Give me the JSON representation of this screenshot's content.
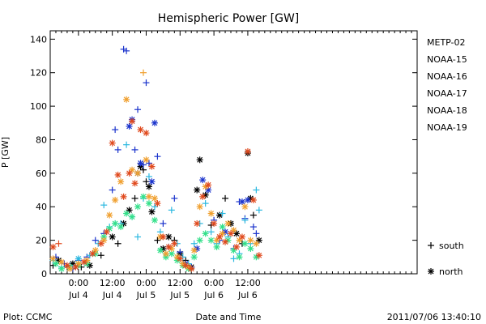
{
  "footer": {
    "plot_credit": "Plot: CCMC",
    "timestamp": "2011/07/06 13:40:10"
  },
  "colors": {
    "METP-02": "#000000",
    "NOAA-15": "#1a33cc",
    "NOAA-16": "#2ab8e0",
    "NOAA-17": "#33e08a",
    "NOAA-18": "#f0a030",
    "NOAA-19": "#e04a1e"
  },
  "chart_data": {
    "type": "scatter",
    "title": "Hemispheric Power [GW]",
    "xlabel": "Date and Time",
    "ylabel": "P [GW]",
    "xlim": [
      -10,
      120
    ],
    "ylim": [
      0,
      145
    ],
    "yticks": [
      0,
      20,
      40,
      60,
      80,
      100,
      120,
      140
    ],
    "xticks": [
      {
        "h": 0,
        "time": "0:00",
        "date": "Jul 4"
      },
      {
        "h": 12,
        "time": "12:00",
        "date": "Jul 4"
      },
      {
        "h": 24,
        "time": "0:00",
        "date": "Jul 5"
      },
      {
        "h": 36,
        "time": "12:00",
        "date": "Jul 5"
      },
      {
        "h": 48,
        "time": "0:00",
        "date": "Jul 6"
      },
      {
        "h": 60,
        "time": "12:00",
        "date": "Jul 6"
      }
    ],
    "marker_legend": [
      {
        "marker": "+",
        "label": "south"
      },
      {
        "marker": "*",
        "label": "north"
      }
    ],
    "series": [
      {
        "name": "METP-02",
        "points": [
          [
            -9,
            5,
            "+"
          ],
          [
            -7,
            8,
            "*"
          ],
          [
            -4,
            4,
            "+"
          ],
          [
            -2,
            6,
            "*"
          ],
          [
            1,
            4,
            "+"
          ],
          [
            4,
            5,
            "*"
          ],
          [
            8,
            11,
            "+"
          ],
          [
            12,
            22,
            "*"
          ],
          [
            14,
            18,
            "+"
          ],
          [
            16,
            30,
            "*"
          ],
          [
            18,
            38,
            "*"
          ],
          [
            20,
            45,
            "+"
          ],
          [
            21,
            60,
            "*"
          ],
          [
            22,
            64,
            "*"
          ],
          [
            23,
            62,
            "+"
          ],
          [
            24,
            55,
            "+"
          ],
          [
            25,
            52,
            "*"
          ],
          [
            26,
            37,
            "*"
          ],
          [
            28,
            20,
            "+"
          ],
          [
            30,
            15,
            "*"
          ],
          [
            32,
            22,
            "*"
          ],
          [
            34,
            20,
            "+"
          ],
          [
            36,
            12,
            "*"
          ],
          [
            38,
            8,
            "+"
          ],
          [
            40,
            4,
            "*"
          ],
          [
            42,
            50,
            "*"
          ],
          [
            43,
            68,
            "*"
          ],
          [
            45,
            47,
            "*"
          ],
          [
            47,
            29,
            "+"
          ],
          [
            50,
            35,
            "*"
          ],
          [
            52,
            45,
            "+"
          ],
          [
            54,
            30,
            "*"
          ],
          [
            56,
            24,
            "*"
          ],
          [
            58,
            18,
            "+"
          ],
          [
            60,
            72,
            "*"
          ],
          [
            61,
            45,
            "*"
          ],
          [
            62,
            35,
            "+"
          ],
          [
            64,
            20,
            "*"
          ]
        ]
      },
      {
        "name": "NOAA-15",
        "points": [
          [
            -8,
            10,
            "+"
          ],
          [
            -5,
            6,
            "+"
          ],
          [
            -2,
            3,
            "+"
          ],
          [
            0,
            8,
            "+"
          ],
          [
            3,
            10,
            "+"
          ],
          [
            6,
            20,
            "+"
          ],
          [
            9,
            24,
            "+"
          ],
          [
            12,
            50,
            "+"
          ],
          [
            13,
            86,
            "+"
          ],
          [
            14,
            74,
            "+"
          ],
          [
            16,
            134,
            "+"
          ],
          [
            17,
            133,
            "+"
          ],
          [
            18,
            88,
            "*"
          ],
          [
            19,
            92,
            "*"
          ],
          [
            20,
            74,
            "+"
          ],
          [
            21,
            98,
            "+"
          ],
          [
            22,
            66,
            "*"
          ],
          [
            23,
            65,
            "+"
          ],
          [
            24,
            114,
            "+"
          ],
          [
            25,
            66,
            "+"
          ],
          [
            26,
            55,
            "*"
          ],
          [
            27,
            90,
            "*"
          ],
          [
            28,
            70,
            "+"
          ],
          [
            30,
            30,
            "+"
          ],
          [
            32,
            16,
            "+"
          ],
          [
            34,
            45,
            "+"
          ],
          [
            36,
            13,
            "+"
          ],
          [
            38,
            6,
            "*"
          ],
          [
            40,
            4,
            "+"
          ],
          [
            42,
            15,
            "*"
          ],
          [
            44,
            56,
            "*"
          ],
          [
            46,
            50,
            "*"
          ],
          [
            48,
            32,
            "+"
          ],
          [
            50,
            20,
            "+"
          ],
          [
            52,
            25,
            "*"
          ],
          [
            55,
            15,
            "+"
          ],
          [
            57,
            43,
            "+"
          ],
          [
            58,
            43,
            "*"
          ],
          [
            59,
            33,
            "+"
          ],
          [
            60,
            44,
            "*"
          ],
          [
            62,
            28,
            "+"
          ],
          [
            63,
            24,
            "+"
          ]
        ]
      },
      {
        "name": "NOAA-16",
        "points": [
          [
            -9,
            8,
            "+"
          ],
          [
            -6,
            4,
            "+"
          ],
          [
            -3,
            5,
            "+"
          ],
          [
            0,
            9,
            "*"
          ],
          [
            2,
            7,
            "+"
          ],
          [
            4,
            11,
            "+"
          ],
          [
            7,
            18,
            "+"
          ],
          [
            9,
            41,
            "+"
          ],
          [
            11,
            28,
            "+"
          ],
          [
            13,
            30,
            "+"
          ],
          [
            15,
            30,
            "+"
          ],
          [
            17,
            77,
            "+"
          ],
          [
            19,
            34,
            "+"
          ],
          [
            21,
            22,
            "+"
          ],
          [
            23,
            45,
            "+"
          ],
          [
            25,
            58,
            "+"
          ],
          [
            27,
            40,
            "+"
          ],
          [
            29,
            25,
            "+"
          ],
          [
            31,
            12,
            "+"
          ],
          [
            33,
            38,
            "+"
          ],
          [
            35,
            18,
            "+"
          ],
          [
            37,
            10,
            "+"
          ],
          [
            39,
            6,
            "+"
          ],
          [
            41,
            18,
            "+"
          ],
          [
            43,
            30,
            "+"
          ],
          [
            45,
            42,
            "+"
          ],
          [
            47,
            25,
            "+"
          ],
          [
            49,
            18,
            "+"
          ],
          [
            51,
            36,
            "+"
          ],
          [
            53,
            22,
            "+"
          ],
          [
            55,
            9,
            "+"
          ],
          [
            57,
            12,
            "+"
          ],
          [
            59,
            32,
            "+"
          ],
          [
            61,
            18,
            "+"
          ],
          [
            63,
            50,
            "+"
          ],
          [
            64,
            38,
            "+"
          ]
        ]
      },
      {
        "name": "NOAA-17",
        "points": [
          [
            -8,
            6,
            "*"
          ],
          [
            -6,
            3,
            "*"
          ],
          [
            -3,
            4,
            "*"
          ],
          [
            0,
            5,
            "*"
          ],
          [
            3,
            6,
            "*"
          ],
          [
            6,
            12,
            "*"
          ],
          [
            9,
            22,
            "*"
          ],
          [
            11,
            27,
            "*"
          ],
          [
            13,
            30,
            "*"
          ],
          [
            15,
            28,
            "*"
          ],
          [
            17,
            36,
            "*"
          ],
          [
            19,
            34,
            "*"
          ],
          [
            21,
            40,
            "*"
          ],
          [
            23,
            46,
            "*"
          ],
          [
            25,
            42,
            "*"
          ],
          [
            27,
            32,
            "*"
          ],
          [
            29,
            14,
            "*"
          ],
          [
            31,
            10,
            "*"
          ],
          [
            33,
            12,
            "*"
          ],
          [
            35,
            8,
            "*"
          ],
          [
            37,
            5,
            "*"
          ],
          [
            39,
            3,
            "*"
          ],
          [
            41,
            10,
            "*"
          ],
          [
            43,
            20,
            "*"
          ],
          [
            45,
            24,
            "*"
          ],
          [
            47,
            20,
            "*"
          ],
          [
            49,
            16,
            "*"
          ],
          [
            51,
            28,
            "*"
          ],
          [
            53,
            20,
            "*"
          ],
          [
            55,
            14,
            "*"
          ],
          [
            57,
            10,
            "*"
          ],
          [
            59,
            18,
            "*"
          ],
          [
            61,
            15,
            "*"
          ],
          [
            63,
            10,
            "*"
          ]
        ]
      },
      {
        "name": "NOAA-18",
        "points": [
          [
            -9,
            9,
            "*"
          ],
          [
            -6,
            7,
            "*"
          ],
          [
            -3,
            3,
            "*"
          ],
          [
            0,
            6,
            "*"
          ],
          [
            3,
            8,
            "*"
          ],
          [
            6,
            14,
            "*"
          ],
          [
            9,
            20,
            "*"
          ],
          [
            11,
            35,
            "*"
          ],
          [
            13,
            44,
            "*"
          ],
          [
            15,
            55,
            "*"
          ],
          [
            17,
            104,
            "*"
          ],
          [
            19,
            62,
            "*"
          ],
          [
            21,
            60,
            "*"
          ],
          [
            23,
            120,
            "+"
          ],
          [
            24,
            68,
            "*"
          ],
          [
            25,
            46,
            "*"
          ],
          [
            27,
            45,
            "*"
          ],
          [
            29,
            22,
            "*"
          ],
          [
            31,
            12,
            "*"
          ],
          [
            33,
            15,
            "*"
          ],
          [
            35,
            10,
            "*"
          ],
          [
            37,
            6,
            "*"
          ],
          [
            39,
            4,
            "*"
          ],
          [
            41,
            14,
            "*"
          ],
          [
            43,
            40,
            "*"
          ],
          [
            45,
            52,
            "*"
          ],
          [
            47,
            36,
            "*"
          ],
          [
            49,
            20,
            "*"
          ],
          [
            51,
            24,
            "*"
          ],
          [
            53,
            30,
            "*"
          ],
          [
            55,
            26,
            "*"
          ],
          [
            57,
            20,
            "*"
          ],
          [
            59,
            40,
            "*"
          ],
          [
            61,
            20,
            "*"
          ],
          [
            63,
            18,
            "*"
          ]
        ]
      },
      {
        "name": "NOAA-19",
        "points": [
          [
            -9,
            16,
            "*"
          ],
          [
            -7,
            18,
            "+"
          ],
          [
            -4,
            5,
            "*"
          ],
          [
            -1,
            4,
            "*"
          ],
          [
            2,
            7,
            "*"
          ],
          [
            5,
            12,
            "*"
          ],
          [
            8,
            18,
            "*"
          ],
          [
            10,
            25,
            "*"
          ],
          [
            12,
            78,
            "*"
          ],
          [
            14,
            59,
            "*"
          ],
          [
            16,
            46,
            "*"
          ],
          [
            18,
            60,
            "*"
          ],
          [
            19,
            91,
            "*"
          ],
          [
            20,
            54,
            "*"
          ],
          [
            22,
            86,
            "*"
          ],
          [
            24,
            84,
            "*"
          ],
          [
            26,
            64,
            "*"
          ],
          [
            28,
            42,
            "*"
          ],
          [
            30,
            22,
            "*"
          ],
          [
            32,
            16,
            "*"
          ],
          [
            34,
            18,
            "*"
          ],
          [
            36,
            9,
            "*"
          ],
          [
            38,
            5,
            "*"
          ],
          [
            40,
            3,
            "*"
          ],
          [
            42,
            30,
            "*"
          ],
          [
            44,
            46,
            "*"
          ],
          [
            46,
            53,
            "*"
          ],
          [
            48,
            30,
            "*"
          ],
          [
            50,
            22,
            "*"
          ],
          [
            52,
            19,
            "*"
          ],
          [
            54,
            24,
            "*"
          ],
          [
            56,
            16,
            "*"
          ],
          [
            58,
            22,
            "*"
          ],
          [
            60,
            73,
            "*"
          ],
          [
            62,
            44,
            "*"
          ],
          [
            64,
            11,
            "*"
          ]
        ]
      }
    ]
  }
}
